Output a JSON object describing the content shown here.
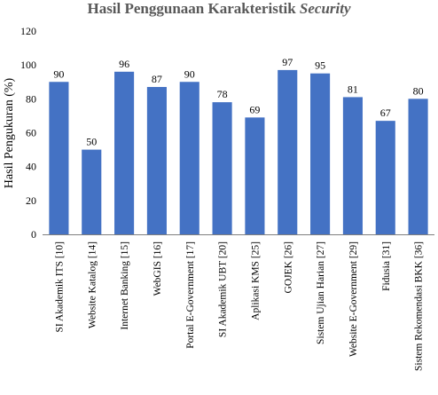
{
  "chart_data": {
    "type": "bar",
    "title": "Hasil Penggunaan Karakteristik",
    "title_emphasis": "Security",
    "xlabel": "",
    "ylabel": "Hasil Pengukuran (%)",
    "ylim": [
      0,
      120
    ],
    "yticks": [
      0,
      20,
      40,
      60,
      80,
      100,
      120
    ],
    "grid": false,
    "bar_color": "#4472C4",
    "categories": [
      "SI Akademik ITS [10]",
      "Website Katalog [14]",
      "Internet Banking [15]",
      "WebGIS [16]",
      "Portal E-Government [17]",
      "SI Akademik UBT [20]",
      "Aplikasi KMS [25]",
      "GOJEK [26]",
      "Sistem Ujian Harian [27]",
      "Website E-Government [29]",
      "Fidusia [31]",
      "Sistem Rekomendasi BKK [36]"
    ],
    "values": [
      90,
      50,
      96,
      87,
      90,
      78,
      69,
      97,
      95,
      81,
      67,
      80
    ]
  }
}
